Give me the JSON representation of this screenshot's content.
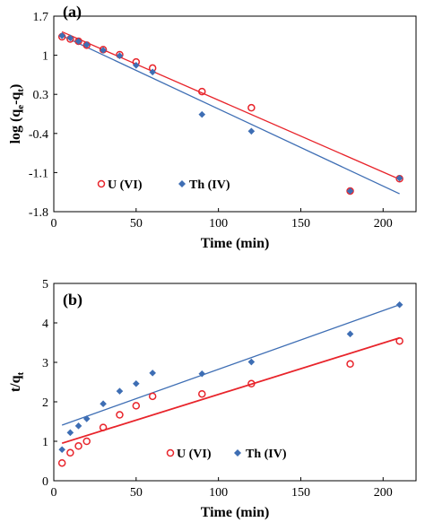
{
  "colors": {
    "u": "#e8242b",
    "th": "#3e6eb4"
  },
  "chart_data": [
    {
      "type": "scatter",
      "panel_label": "(a)",
      "xlabel": "Time (min)",
      "ylabel_main": "log (q",
      "ylabel_sub1": "e",
      "ylabel_mid": "-q",
      "ylabel_sub2": "t",
      "ylabel_end": ")",
      "xlim": [
        0,
        220
      ],
      "ylim": [
        -1.8,
        1.7
      ],
      "xticks": [
        "0",
        "50",
        "100",
        "150",
        "200"
      ],
      "xtick_values": [
        0,
        50,
        100,
        150,
        200
      ],
      "yticks": [
        "1.7",
        "1",
        "0.3",
        "-0.4",
        "-1.1",
        "-1.8"
      ],
      "ytick_values": [
        1.7,
        1.0,
        0.3,
        -0.4,
        -1.1,
        -1.8
      ],
      "legend": [
        "U (VI)",
        "Th (IV)"
      ],
      "legend_position": "bottom-left",
      "series": [
        {
          "name": "U (VI)",
          "marker": "open-circle",
          "color": "#e8242b",
          "points": [
            [
              5,
              1.33
            ],
            [
              10,
              1.29
            ],
            [
              15,
              1.25
            ],
            [
              20,
              1.18
            ],
            [
              30,
              1.1
            ],
            [
              40,
              1.01
            ],
            [
              50,
              0.88
            ],
            [
              60,
              0.77
            ],
            [
              90,
              0.35
            ],
            [
              120,
              0.06
            ],
            [
              180,
              -1.43
            ],
            [
              210,
              -1.21
            ]
          ],
          "fit": [
            [
              5,
              1.42
            ],
            [
              210,
              -1.22
            ]
          ]
        },
        {
          "name": "Th (IV)",
          "marker": "diamond",
          "color": "#3e6eb4",
          "points": [
            [
              5,
              1.35
            ],
            [
              10,
              1.31
            ],
            [
              15,
              1.25
            ],
            [
              20,
              1.19
            ],
            [
              30,
              1.09
            ],
            [
              40,
              0.99
            ],
            [
              50,
              0.82
            ],
            [
              60,
              0.7
            ],
            [
              90,
              -0.06
            ],
            [
              120,
              -0.36
            ],
            [
              180,
              -1.43
            ],
            [
              210,
              -1.2
            ]
          ],
          "fit": [
            [
              5,
              1.35
            ],
            [
              210,
              -1.48
            ]
          ]
        }
      ]
    },
    {
      "type": "scatter",
      "panel_label": "(b)",
      "xlabel": "Time (min)",
      "ylabel_main": "t/q",
      "ylabel_sub1": "t",
      "xlim": [
        0,
        220
      ],
      "ylim": [
        0,
        5
      ],
      "xticks": [
        "0",
        "50",
        "100",
        "150",
        "200"
      ],
      "xtick_values": [
        0,
        50,
        100,
        150,
        200
      ],
      "yticks": [
        "0",
        "1",
        "2",
        "3",
        "4",
        "5"
      ],
      "ytick_values": [
        0,
        1,
        2,
        3,
        4,
        5
      ],
      "legend": [
        "U (VI)",
        "Th (IV)"
      ],
      "legend_position": "bottom-right",
      "series": [
        {
          "name": "U (VI)",
          "marker": "open-circle",
          "color": "#e8242b",
          "points": [
            [
              5,
              0.45
            ],
            [
              10,
              0.71
            ],
            [
              15,
              0.88
            ],
            [
              20,
              1.0
            ],
            [
              30,
              1.35
            ],
            [
              40,
              1.67
            ],
            [
              50,
              1.9
            ],
            [
              60,
              2.14
            ],
            [
              90,
              2.2
            ],
            [
              120,
              2.46
            ],
            [
              180,
              2.96
            ],
            [
              210,
              3.54
            ]
          ],
          "fit": [
            [
              5,
              0.95
            ],
            [
              210,
              3.62
            ]
          ]
        },
        {
          "name": "Th (IV)",
          "marker": "diamond",
          "color": "#3e6eb4",
          "points": [
            [
              5,
              0.79
            ],
            [
              10,
              1.22
            ],
            [
              15,
              1.39
            ],
            [
              20,
              1.57
            ],
            [
              30,
              1.95
            ],
            [
              40,
              2.27
            ],
            [
              50,
              2.46
            ],
            [
              60,
              2.73
            ],
            [
              90,
              2.71
            ],
            [
              120,
              3.01
            ],
            [
              180,
              3.72
            ],
            [
              210,
              4.46
            ]
          ],
          "fit": [
            [
              5,
              1.41
            ],
            [
              210,
              4.46
            ]
          ]
        }
      ]
    }
  ]
}
